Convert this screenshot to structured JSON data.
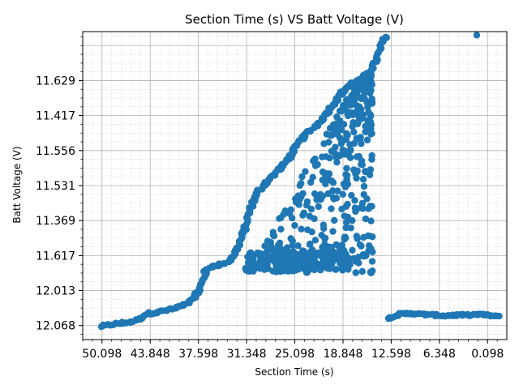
{
  "chart_data": {
    "type": "scatter",
    "title": "Section Time (s) VS Batt Voltage (V)",
    "xlabel": "Section Time (s)",
    "ylabel": "Batt Voltage (V)",
    "x_axis": {
      "reversed": true,
      "range": [
        52.6,
        -2.4
      ],
      "tick_values": [
        50.098,
        43.848,
        37.598,
        31.348,
        25.098,
        18.848,
        12.598,
        6.348,
        0.098
      ],
      "tick_labels": [
        "50.098",
        "43.848",
        "37.598",
        "31.348",
        "25.098",
        "18.848",
        "12.598",
        "6.348",
        "0.098"
      ]
    },
    "y_axis": {
      "categorical": true,
      "range": [
        -0.4,
        8.4
      ],
      "tick_positions": [
        0,
        1,
        2,
        3,
        4,
        5,
        6,
        7
      ],
      "tick_labels": [
        "12.068",
        "12.013",
        "11.617",
        "11.369",
        "11.531",
        "11.556",
        "11.417",
        "11.629"
      ]
    },
    "grid": true,
    "marker_color": "#1f77b4",
    "clusters": {
      "ramp_low": [
        [
          50.1,
          -0.02
        ],
        [
          48.8,
          0.03
        ],
        [
          47.5,
          0.07
        ],
        [
          46.2,
          0.11
        ],
        [
          45.0,
          0.2
        ],
        [
          44.3,
          0.34
        ],
        [
          43.2,
          0.37
        ],
        [
          42.0,
          0.42
        ],
        [
          40.5,
          0.5
        ],
        [
          39.3,
          0.6
        ],
        [
          38.3,
          0.78
        ],
        [
          37.5,
          1.0
        ],
        [
          37.0,
          1.3
        ],
        [
          36.6,
          1.58
        ],
        [
          35.8,
          1.7
        ],
        [
          34.8,
          1.75
        ],
        [
          33.8,
          1.8
        ],
        [
          33.0,
          2.0
        ],
        [
          32.4,
          2.3
        ],
        [
          31.8,
          2.6
        ],
        [
          31.3,
          3.0
        ],
        [
          30.6,
          3.5
        ],
        [
          29.8,
          3.85
        ],
        [
          28.8,
          4.1
        ],
        [
          27.6,
          4.35
        ],
        [
          26.5,
          4.6
        ],
        [
          25.5,
          4.9
        ],
        [
          24.5,
          5.25
        ],
        [
          23.5,
          5.5
        ],
        [
          22.4,
          5.7
        ],
        [
          21.4,
          5.95
        ],
        [
          20.4,
          6.25
        ],
        [
          19.4,
          6.55
        ],
        [
          18.4,
          6.8
        ],
        [
          17.3,
          6.97
        ],
        [
          16.3,
          7.05
        ],
        [
          15.3,
          7.3
        ],
        [
          14.6,
          7.55
        ],
        [
          14.0,
          7.9
        ],
        [
          13.5,
          8.2
        ],
        [
          13.3,
          8.3
        ]
      ],
      "top_outlier": [
        [
          1.5,
          8.3
        ]
      ],
      "low_band_right": [
        [
          13.0,
          0.2
        ],
        [
          11.5,
          0.33
        ],
        [
          10.0,
          0.35
        ],
        [
          8.5,
          0.32
        ],
        [
          7.0,
          0.3
        ],
        [
          5.5,
          0.28
        ],
        [
          4.0,
          0.3
        ],
        [
          2.5,
          0.3
        ],
        [
          1.0,
          0.32
        ],
        [
          -0.5,
          0.28
        ],
        [
          -1.5,
          0.25
        ]
      ],
      "cloud_region": {
        "x_range": [
          15.0,
          31.5
        ],
        "y_range": [
          1.5,
          7.2
        ]
      }
    }
  }
}
